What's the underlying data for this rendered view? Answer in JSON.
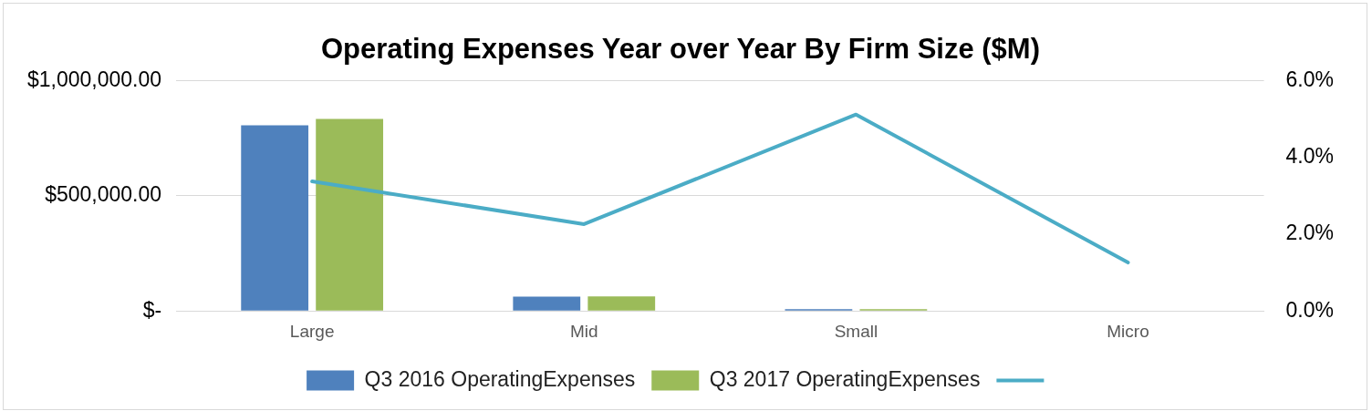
{
  "chart_data": {
    "type": "bar",
    "title": "Operating Expenses Year over Year By Firm Size ($M)",
    "categories": [
      "Large",
      "Mid",
      "Small",
      "Micro"
    ],
    "series": [
      {
        "name": "Q3 2016 OperatingExpenses",
        "color": "#4f81bd",
        "values": [
          805000,
          62000,
          8000,
          0
        ]
      },
      {
        "name": "Q3 2017 OperatingExpenses",
        "color": "#9bbb59",
        "values": [
          833000,
          63000,
          8000,
          0
        ]
      },
      {
        "type": "line",
        "axis": "y2",
        "color": "#4bacc6",
        "values": [
          3.37,
          2.26,
          5.11,
          1.26
        ]
      }
    ],
    "ylim": [
      0,
      1000000
    ],
    "yticks": [
      {
        "value": 0,
        "label": "$-"
      },
      {
        "value": 500000,
        "label": "$500,000.00"
      },
      {
        "value": 1000000,
        "label": "$1,000,000.00"
      }
    ],
    "y2lim": [
      0,
      6
    ],
    "y2ticks": [
      {
        "value": 0,
        "label": "0.0%"
      },
      {
        "value": 2,
        "label": "2.0%"
      },
      {
        "value": 4,
        "label": "4.0%"
      },
      {
        "value": 6,
        "label": "6.0%"
      }
    ],
    "grid": "y",
    "legend": "bottom",
    "marker": "none"
  }
}
